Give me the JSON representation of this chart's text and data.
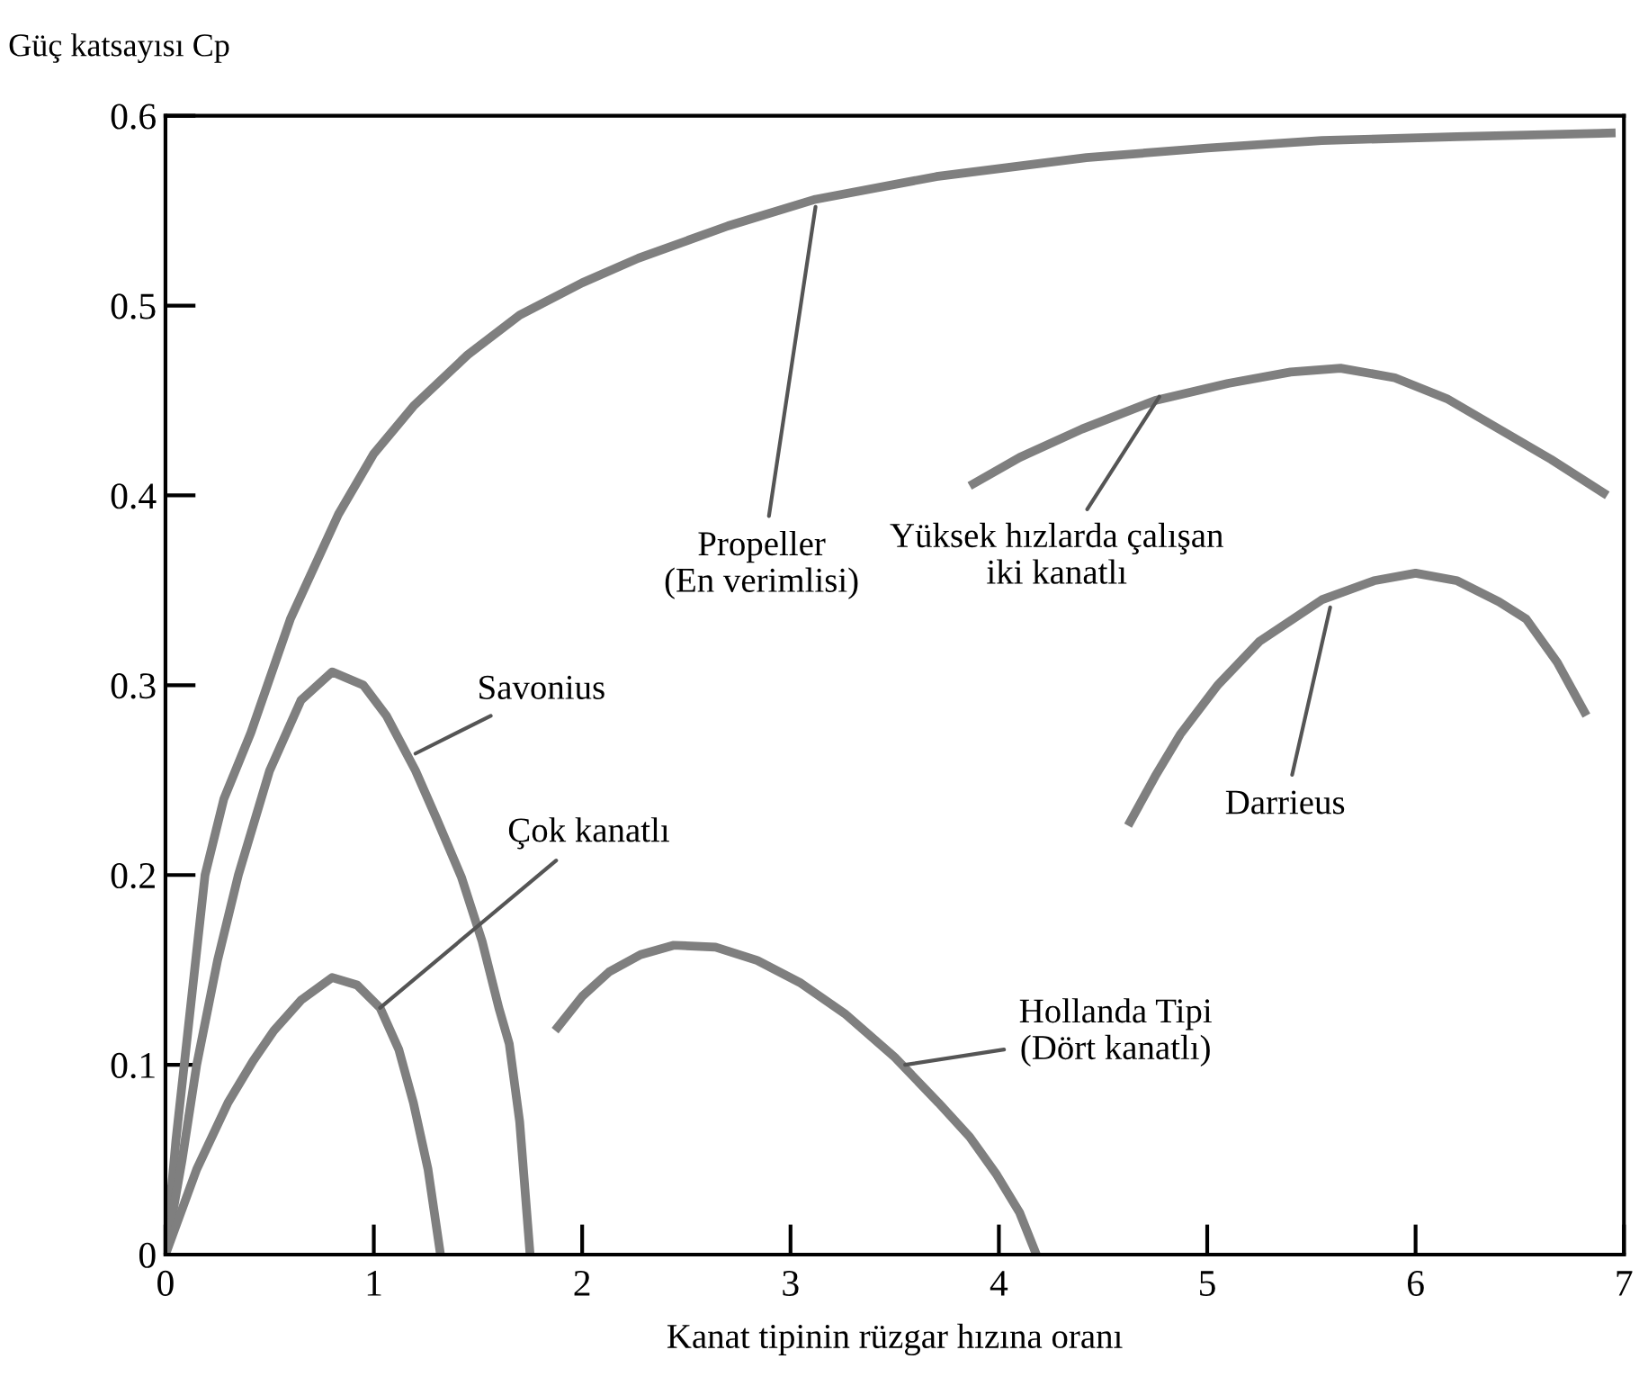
{
  "chart_data": {
    "type": "line",
    "title": "Güç katsayısı Cp",
    "xlabel": "Kanat tipinin rüzgar hızına oranı",
    "xlim": [
      0,
      7
    ],
    "ylim": [
      0,
      0.6
    ],
    "xticks": [
      0,
      1,
      2,
      3,
      4,
      5,
      6,
      7
    ],
    "yticks": [
      0,
      0.1,
      0.2,
      0.3,
      0.4,
      0.5,
      0.6
    ],
    "grid": false,
    "marker": "none",
    "line_style": "solid",
    "series": [
      {
        "color": "#7f7f7f",
        "x": [
          0,
          0.05,
          0.09,
          0.14,
          0.19,
          0.28,
          0.41,
          0.6,
          0.83,
          1.0,
          1.19,
          1.45,
          1.7,
          2.0,
          2.27,
          2.7,
          3.12,
          3.7,
          4.42,
          5.0,
          5.55,
          6.2,
          6.96
        ],
        "values": [
          0,
          0.06,
          0.1,
          0.15,
          0.2,
          0.24,
          0.275,
          0.335,
          0.39,
          0.422,
          0.447,
          0.474,
          0.495,
          0.512,
          0.525,
          0.542,
          0.556,
          0.568,
          0.578,
          0.583,
          0.587,
          0.589,
          0.591
        ]
      },
      {
        "color": "#7f7f7f",
        "x": [
          0,
          0.08,
          0.15,
          0.25,
          0.35,
          0.5,
          0.65,
          0.8,
          0.95,
          1.06,
          1.2,
          1.3,
          1.42,
          1.52,
          1.6,
          1.65,
          1.7,
          1.75
        ],
        "values": [
          0,
          0.05,
          0.1,
          0.155,
          0.2,
          0.255,
          0.292,
          0.307,
          0.3,
          0.284,
          0.255,
          0.23,
          0.199,
          0.165,
          0.13,
          0.111,
          0.07,
          0
        ]
      },
      {
        "color": "#7f7f7f",
        "x": [
          0,
          0.15,
          0.3,
          0.42,
          0.52,
          0.65,
          0.8,
          0.92,
          1.03,
          1.12,
          1.19,
          1.26,
          1.32
        ],
        "values": [
          0,
          0.045,
          0.08,
          0.102,
          0.118,
          0.134,
          0.146,
          0.142,
          0.13,
          0.108,
          0.08,
          0.045,
          0
        ]
      },
      {
        "color": "#7f7f7f",
        "x": [
          1.87,
          2.0,
          2.13,
          2.28,
          2.44,
          2.64,
          2.84,
          3.05,
          3.26,
          3.5,
          3.71,
          3.86,
          3.99,
          4.1,
          4.18
        ],
        "values": [
          0.118,
          0.136,
          0.149,
          0.158,
          0.163,
          0.162,
          0.155,
          0.143,
          0.127,
          0.104,
          0.08,
          0.062,
          0.042,
          0.022,
          0
        ]
      },
      {
        "color": "#7f7f7f",
        "x": [
          3.86,
          4.1,
          4.4,
          4.75,
          5.1,
          5.4,
          5.64,
          5.9,
          6.15,
          6.4,
          6.65,
          6.92
        ],
        "values": [
          0.405,
          0.42,
          0.435,
          0.45,
          0.459,
          0.465,
          0.467,
          0.462,
          0.451,
          0.435,
          0.419,
          0.4
        ]
      },
      {
        "color": "#7f7f7f",
        "x": [
          4.62,
          4.75,
          4.87,
          5.05,
          5.25,
          5.55,
          5.8,
          6.0,
          6.2,
          6.4,
          6.53,
          6.68,
          6.82
        ],
        "values": [
          0.226,
          0.252,
          0.274,
          0.3,
          0.323,
          0.345,
          0.355,
          0.359,
          0.355,
          0.344,
          0.335,
          0.312,
          0.284
        ]
      }
    ],
    "annotations": [
      {
        "text": "Propeller\n(En verimlisi)",
        "x": 3.12,
        "y": 0.552
      },
      {
        "text": "Yüksek hızlarda çalışan\niki kanatlı",
        "x": 4.77,
        "y": 0.452
      },
      {
        "text": "Darrieus",
        "x": 5.59,
        "y": 0.341
      },
      {
        "text": "Savonius",
        "x": 1.2,
        "y": 0.264
      },
      {
        "text": "Çok kanatlı",
        "x": 1.03,
        "y": 0.13
      },
      {
        "text": "Hollanda Tipi\n(Dört kanatlı)",
        "x": 3.55,
        "y": 0.1
      }
    ]
  }
}
